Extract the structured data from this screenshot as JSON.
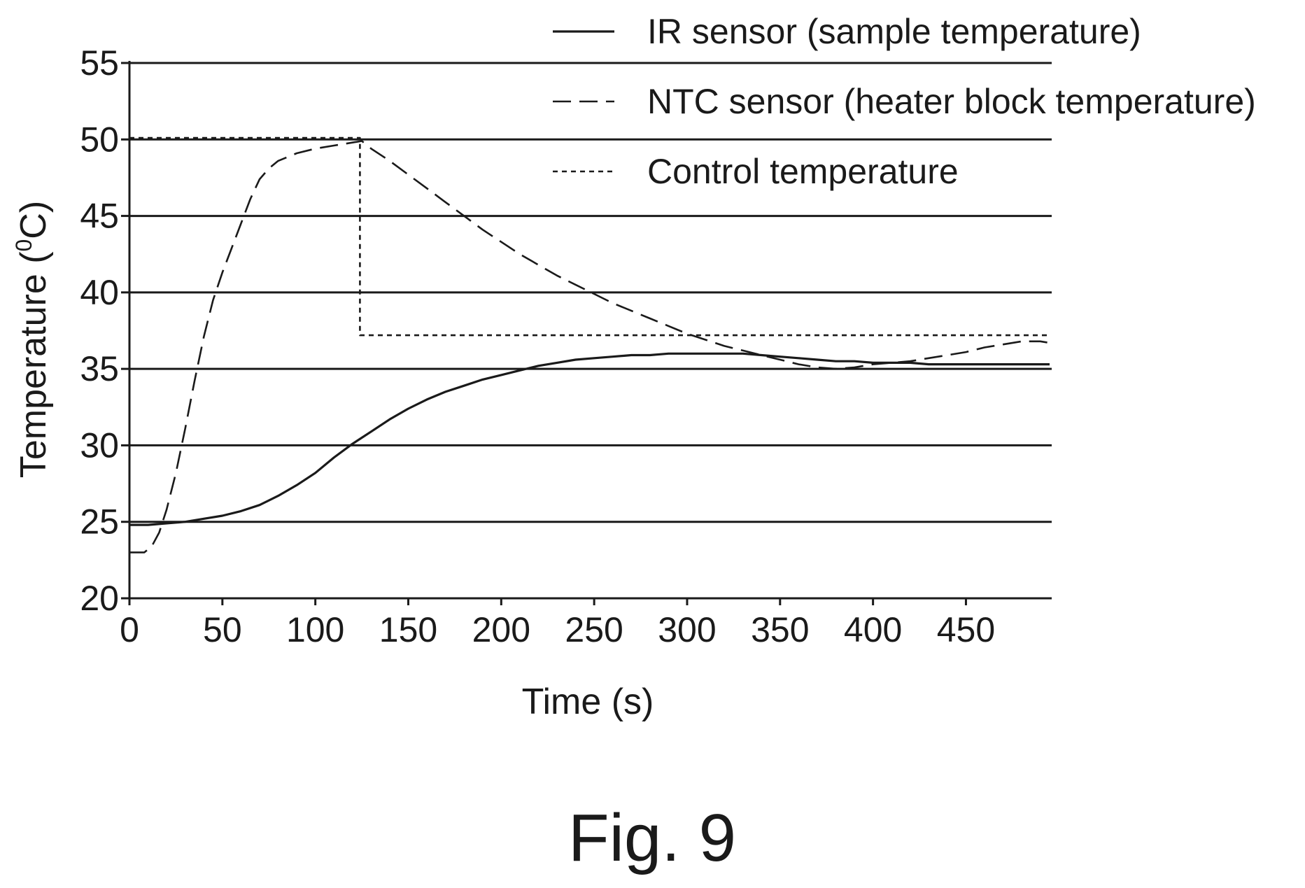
{
  "chart_data": {
    "type": "line",
    "title": "",
    "xlabel": "Time (s)",
    "ylabel_main": "Temperature (",
    "ylabel_sup": "0",
    "ylabel_end": "C)",
    "xlim": [
      0,
      495
    ],
    "ylim": [
      20,
      55
    ],
    "x_ticks": [
      0,
      50,
      100,
      150,
      200,
      250,
      300,
      350,
      400,
      450
    ],
    "x_tick_labels": [
      "0",
      "50",
      "100",
      "150",
      "200",
      "250",
      "300",
      "350",
      "400",
      "450"
    ],
    "y_ticks": [
      20,
      25,
      30,
      35,
      40,
      45,
      50,
      55
    ],
    "y_tick_labels": [
      "20",
      "25",
      "30",
      "35",
      "40",
      "45",
      "50",
      "55"
    ],
    "grid": true,
    "legend_position": "top-right",
    "series": [
      {
        "name": "IR sensor (sample temperature)",
        "style": "solid",
        "x": [
          0,
          10,
          20,
          30,
          40,
          50,
          60,
          70,
          80,
          90,
          100,
          110,
          120,
          130,
          140,
          150,
          160,
          170,
          180,
          190,
          200,
          210,
          220,
          230,
          240,
          250,
          260,
          270,
          280,
          290,
          300,
          310,
          320,
          330,
          340,
          350,
          360,
          370,
          380,
          390,
          400,
          410,
          420,
          430,
          440,
          450,
          460,
          470,
          480,
          495
        ],
        "y": [
          24.8,
          24.8,
          24.9,
          25.0,
          25.2,
          25.4,
          25.7,
          26.1,
          26.7,
          27.4,
          28.2,
          29.2,
          30.1,
          30.9,
          31.7,
          32.4,
          33.0,
          33.5,
          33.9,
          34.3,
          34.6,
          34.9,
          35.2,
          35.4,
          35.6,
          35.7,
          35.8,
          35.9,
          35.9,
          36.0,
          36.0,
          36.0,
          36.0,
          36.0,
          35.9,
          35.8,
          35.7,
          35.6,
          35.5,
          35.5,
          35.4,
          35.4,
          35.4,
          35.3,
          35.3,
          35.3,
          35.3,
          35.3,
          35.3,
          35.3
        ]
      },
      {
        "name": "NTC sensor (heater block temperature)",
        "style": "dashed",
        "x": [
          0,
          8,
          12,
          16,
          20,
          25,
          30,
          35,
          40,
          45,
          50,
          55,
          60,
          65,
          70,
          75,
          80,
          90,
          100,
          110,
          120,
          125,
          130,
          140,
          150,
          160,
          170,
          180,
          190,
          200,
          210,
          220,
          230,
          240,
          250,
          260,
          270,
          280,
          290,
          300,
          310,
          320,
          330,
          340,
          350,
          360,
          370,
          380,
          390,
          400,
          410,
          420,
          430,
          440,
          450,
          460,
          470,
          480,
          490,
          495
        ],
        "y": [
          23.0,
          23.0,
          23.4,
          24.3,
          25.8,
          28.2,
          31.1,
          34.2,
          37.1,
          39.5,
          41.3,
          42.9,
          44.5,
          46.1,
          47.4,
          48.1,
          48.6,
          49.1,
          49.4,
          49.6,
          49.8,
          49.9,
          49.4,
          48.6,
          47.7,
          46.8,
          45.9,
          45.0,
          44.1,
          43.3,
          42.5,
          41.8,
          41.1,
          40.5,
          39.9,
          39.3,
          38.8,
          38.3,
          37.8,
          37.3,
          36.9,
          36.5,
          36.2,
          35.9,
          35.6,
          35.3,
          35.1,
          35.0,
          35.1,
          35.3,
          35.4,
          35.5,
          35.7,
          35.9,
          36.1,
          36.4,
          36.6,
          36.8,
          36.8,
          36.7
        ]
      },
      {
        "name": "Control temperature",
        "style": "dotted",
        "x": [
          0,
          124,
          124,
          495
        ],
        "y": [
          50.1,
          50.1,
          37.2,
          37.2
        ]
      }
    ]
  },
  "caption": "Fig. 9"
}
